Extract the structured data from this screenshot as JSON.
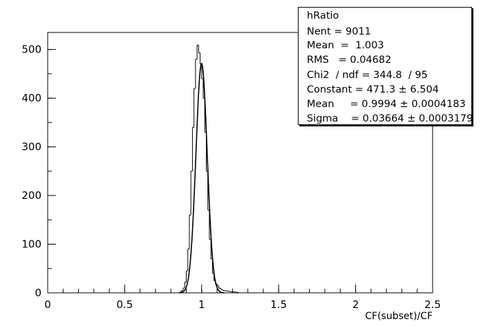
{
  "chart_data": {
    "type": "histogram",
    "title": "",
    "xlabel": "CF(subset)/CF",
    "ylabel": "",
    "xlim": [
      0,
      2.5
    ],
    "ylim": [
      0,
      535
    ],
    "x_ticks": [
      "0",
      "0.5",
      "1",
      "1.5",
      "2",
      "2.5"
    ],
    "y_ticks": [
      "0",
      "100",
      "200",
      "300",
      "400",
      "500"
    ],
    "x_tick_values": [
      0,
      0.5,
      1,
      1.5,
      2,
      2.5
    ],
    "y_tick_values": [
      0,
      100,
      200,
      300,
      400,
      500
    ],
    "histogram": {
      "bin_width": 0.01,
      "x": [
        0.86,
        0.87,
        0.88,
        0.89,
        0.9,
        0.91,
        0.92,
        0.93,
        0.94,
        0.95,
        0.96,
        0.97,
        0.98,
        0.99,
        1.0,
        1.01,
        1.02,
        1.03,
        1.04,
        1.05,
        1.06,
        1.07,
        1.08,
        1.09,
        1.1,
        1.11,
        1.12,
        1.13,
        1.14,
        1.15,
        1.16,
        1.17,
        1.18,
        1.19,
        1.2,
        1.21,
        1.22,
        1.23
      ],
      "values": [
        2,
        5,
        10,
        22,
        45,
        90,
        160,
        250,
        340,
        420,
        480,
        509,
        493,
        470,
        440,
        400,
        330,
        250,
        170,
        110,
        70,
        40,
        25,
        18,
        15,
        10,
        8,
        6,
        5,
        4,
        4,
        3,
        3,
        2,
        2,
        2,
        1,
        1
      ]
    },
    "fit": {
      "name": "gaus",
      "constant": 471.3,
      "mean": 0.9994,
      "sigma": 0.03664
    }
  },
  "stats": {
    "title": "hRatio",
    "lines": [
      "Nent = 9011",
      "Mean  =  1.003",
      "RMS   = 0.04682",
      "Chi2  / ndf = 344.8  / 95",
      "Constant = 471.3 ± 6.504",
      "Mean     = 0.9994 ± 0.0004183",
      "Sigma    = 0.03664 ± 0.0003179"
    ]
  }
}
